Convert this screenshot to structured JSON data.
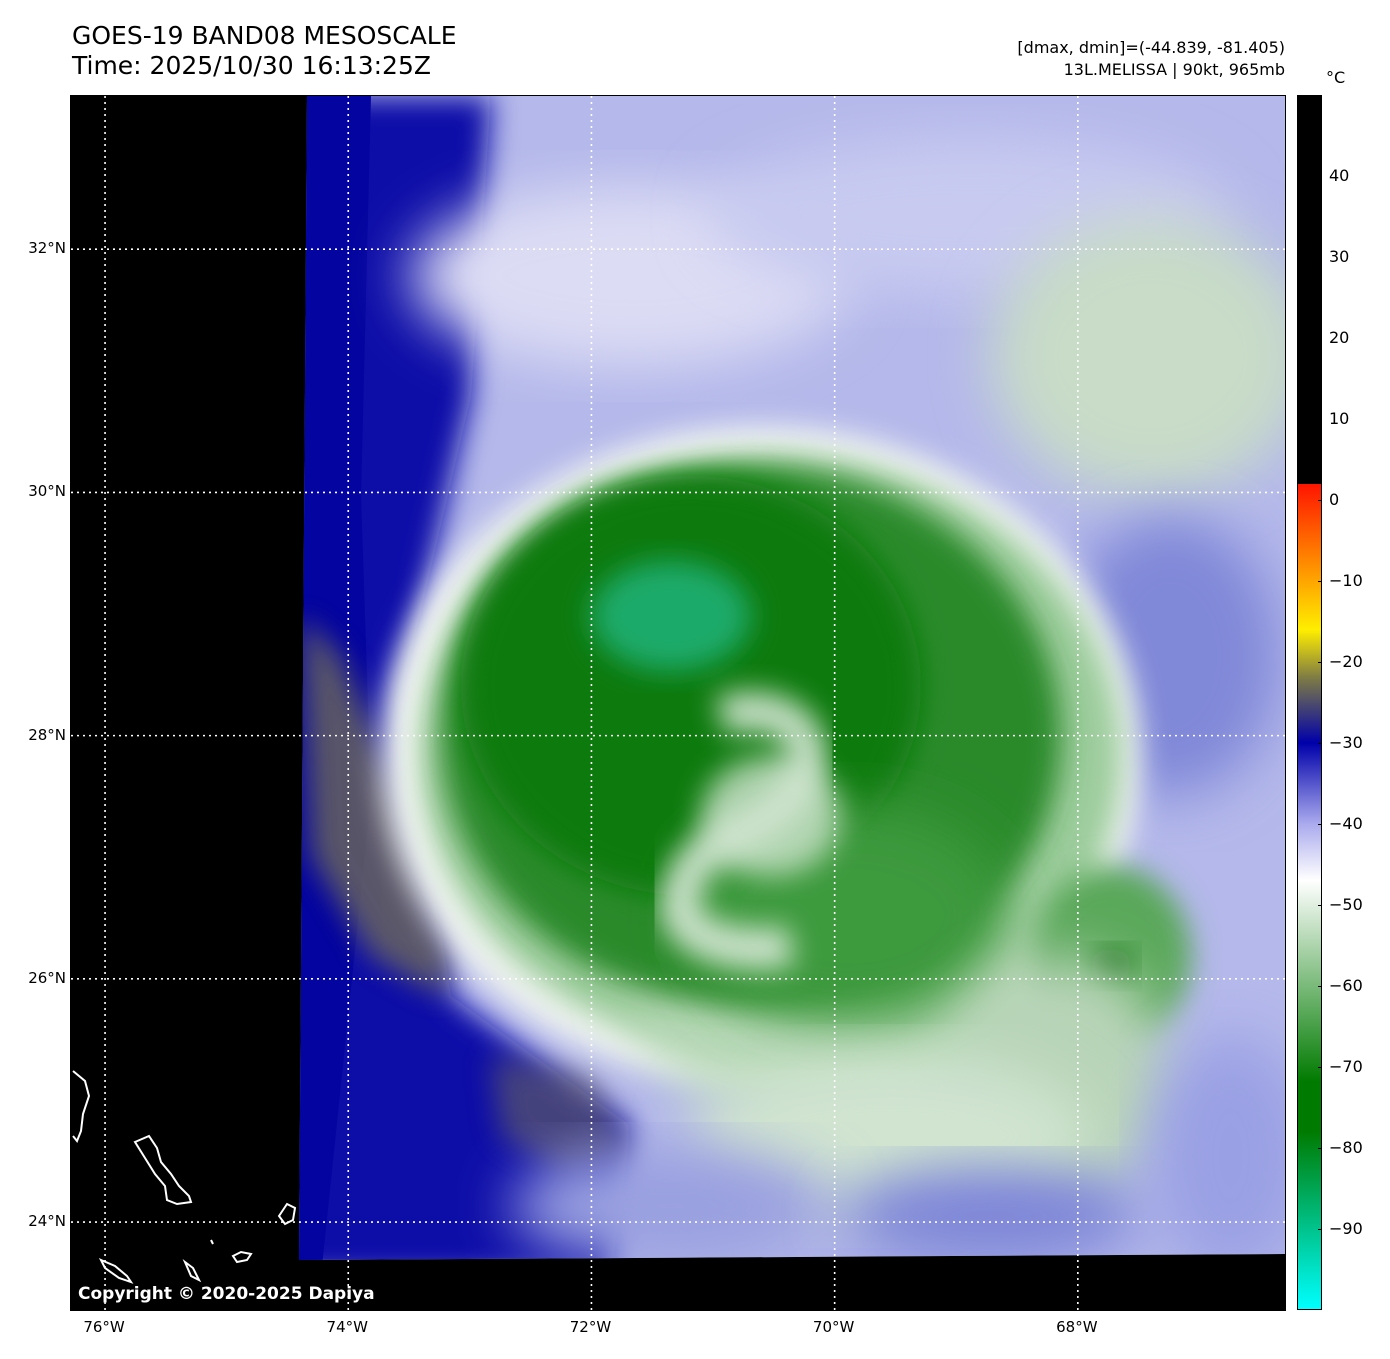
{
  "header": {
    "title_line1": "GOES-19 BAND08 MESOSCALE",
    "title_line2": "Time: 2025/10/30 16:13:25Z",
    "info_line1": "[dmax, dmin]=(-44.839, -81.405)",
    "info_line2": "13L.MELISSA | 90kt, 965mb"
  },
  "map": {
    "lat_labels": [
      "32°N",
      "30°N",
      "28°N",
      "26°N",
      "24°N"
    ],
    "lat_values": [
      32,
      30,
      28,
      26,
      24
    ],
    "lon_labels": [
      "76°W",
      "74°W",
      "72°W",
      "70°W",
      "68°W"
    ],
    "lon_values": [
      -76,
      -74,
      -72,
      -70,
      -68
    ],
    "lat_range": [
      23.26,
      33.26
    ],
    "lon_range": [
      -76.28,
      -66.28
    ],
    "gridlines": "dotted white",
    "copyright": "Copyright © 2020-2025 Dapiya"
  },
  "colorbar": {
    "unit": "°C",
    "tick_labels": [
      "40",
      "30",
      "20",
      "10",
      "0",
      "−10",
      "−20",
      "−30",
      "−40",
      "−50",
      "−60",
      "−70",
      "−80",
      "−90"
    ],
    "tick_values": [
      40,
      30,
      20,
      10,
      0,
      -10,
      -20,
      -30,
      -40,
      -50,
      -60,
      -70,
      -80,
      -90
    ],
    "range": [
      -100,
      50
    ],
    "colors": {
      "warm": "#000000",
      "red": "#ff1500",
      "yellow": "#ffee00",
      "olive": "#7d7a45",
      "dark_blue": "#0000aa",
      "light_blue": "#aaaaee",
      "white": "#ffffff",
      "green": "#007a00",
      "cyan": "#00ffff"
    }
  }
}
